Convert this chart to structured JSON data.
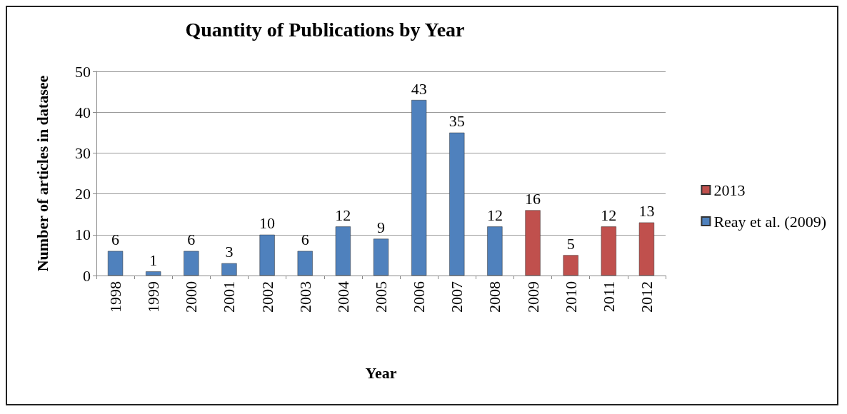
{
  "chart_data": {
    "type": "bar",
    "title": "Quantity of Publications by Year",
    "xlabel": "Year",
    "ylabel": "Number of articles in datasee",
    "categories": [
      "1998",
      "1999",
      "2000",
      "2001",
      "2002",
      "2003",
      "2004",
      "2005",
      "2006",
      "2007",
      "2008",
      "2009",
      "2010",
      "2011",
      "2012"
    ],
    "series": [
      {
        "name": "2013",
        "color": "#c0504d",
        "values": [
          null,
          null,
          null,
          null,
          null,
          null,
          null,
          null,
          null,
          null,
          null,
          16,
          5,
          12,
          13
        ]
      },
      {
        "name": "Reay et al. (2009)",
        "color": "#4f81bd",
        "values": [
          6,
          1,
          6,
          3,
          10,
          6,
          12,
          9,
          43,
          35,
          12,
          null,
          null,
          null,
          null
        ]
      }
    ],
    "stacked": true,
    "ylim": [
      0,
      50
    ],
    "yticks": [
      0,
      10,
      20,
      30,
      40,
      50
    ],
    "grid": "y",
    "legend": "right",
    "data_labels": true
  }
}
